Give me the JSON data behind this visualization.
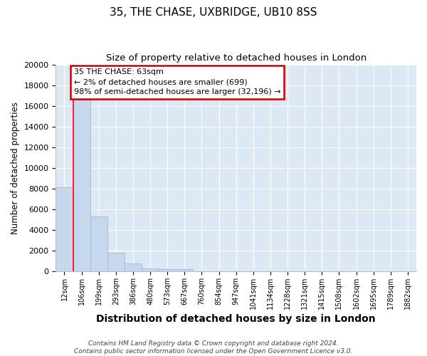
{
  "title": "35, THE CHASE, UXBRIDGE, UB10 8SS",
  "subtitle": "Size of property relative to detached houses in London",
  "xlabel": "Distribution of detached houses by size in London",
  "ylabel": "Number of detached properties",
  "categories": [
    "12sqm",
    "106sqm",
    "199sqm",
    "293sqm",
    "386sqm",
    "480sqm",
    "573sqm",
    "667sqm",
    "760sqm",
    "854sqm",
    "947sqm",
    "1041sqm",
    "1134sqm",
    "1228sqm",
    "1321sqm",
    "1415sqm",
    "1508sqm",
    "1602sqm",
    "1695sqm",
    "1789sqm",
    "1882sqm"
  ],
  "values": [
    8100,
    16600,
    5300,
    1800,
    780,
    300,
    200,
    200,
    0,
    0,
    0,
    0,
    0,
    0,
    0,
    0,
    0,
    0,
    0,
    0,
    0
  ],
  "bar_color": "#c5d8ed",
  "bar_edge_color": "#9dbbd8",
  "ylim": [
    0,
    20000
  ],
  "yticks": [
    0,
    2000,
    4000,
    6000,
    8000,
    10000,
    12000,
    14000,
    16000,
    18000,
    20000
  ],
  "annotation_title": "35 THE CHASE: 63sqm",
  "annotation_line1": "← 2% of detached houses are smaller (699)",
  "annotation_line2": "98% of semi-detached houses are larger (32,196) →",
  "annotation_box_edgecolor": "#cc0000",
  "annotation_box_facecolor": "#ffffff",
  "red_line_x": 0.5,
  "fig_background": "#ffffff",
  "plot_background": "#dce9f5",
  "grid_color": "#ffffff",
  "footnote": "Contains HM Land Registry data © Crown copyright and database right 2024.\nContains public sector information licensed under the Open Government Licence v3.0.",
  "title_fontsize": 11,
  "subtitle_fontsize": 9.5,
  "xlabel_fontsize": 10,
  "ylabel_fontsize": 8.5,
  "tick_fontsize": 7,
  "annot_fontsize": 8,
  "footnote_fontsize": 6.5
}
